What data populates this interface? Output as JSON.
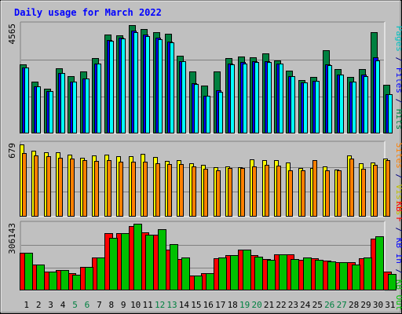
{
  "chart_data": {
    "type": "bar",
    "title": "Daily usage for March 2022",
    "categories": [
      "1",
      "2",
      "3",
      "4",
      "5",
      "6",
      "7",
      "8",
      "9",
      "10",
      "11",
      "12",
      "13",
      "14",
      "15",
      "16",
      "17",
      "18",
      "19",
      "20",
      "21",
      "22",
      "23",
      "24",
      "25",
      "26",
      "27",
      "28",
      "29",
      "30",
      "31"
    ],
    "weekend_days": [
      "5",
      "6",
      "12",
      "13",
      "19",
      "20",
      "26",
      "27"
    ],
    "panels": [
      {
        "id": "hits",
        "max_label": "4565",
        "ylim": [
          0,
          4565
        ],
        "series": [
          {
            "name": "Hits",
            "color": "#008040",
            "values": [
              2920,
              2170,
              1900,
              2740,
              2400,
              2610,
              3190,
              4160,
              4150,
              4565,
              4400,
              4260,
              4190,
              3260,
              2610,
              2030,
              2610,
              3160,
              3240,
              3200,
              3370,
              3060,
              2660,
              2250,
              2380,
              3500,
              2720,
              2370,
              2700,
              4260,
              2060
            ]
          },
          {
            "name": "Files",
            "color": "#0000ff",
            "values": [
              2770,
              1980,
              1770,
              2550,
              2170,
              2310,
              2950,
              3920,
              4040,
              4340,
              4160,
              4020,
              3860,
              3050,
              2110,
              1580,
              1820,
              2930,
              3000,
              3050,
              3050,
              2940,
              2400,
              2150,
              2230,
              2900,
              2470,
              2190,
              2490,
              3200,
              1650
            ]
          },
          {
            "name": "Pages",
            "color": "#00ffff",
            "values": [
              2770,
              1980,
              1770,
              2550,
              2170,
              2310,
              2950,
              3900,
              3990,
              4260,
              4100,
              3980,
              3830,
              3050,
              2070,
              1580,
              1760,
              2910,
              2940,
              3020,
              3010,
              2940,
              2400,
              2150,
              2230,
              2880,
              2470,
              2190,
              2420,
              3060,
              1650
            ]
          }
        ]
      },
      {
        "id": "visits",
        "max_label": "679",
        "ylim": [
          0,
          679
        ],
        "series": [
          {
            "name": "Visits",
            "color": "#ffff00",
            "values": [
              679,
              619,
              603,
              603,
              584,
              551,
              576,
              584,
              565,
              565,
              592,
              563,
              524,
              535,
              501,
              488,
              464,
              475,
              466,
              536,
              533,
              533,
              510,
              459,
              460,
              471,
              440,
              578,
              500,
              510,
              543
            ]
          },
          {
            "name": "Sites",
            "color": "#ff8000",
            "values": [
              595,
              574,
              571,
              555,
              543,
              528,
              524,
              534,
              516,
              518,
              513,
              505,
              493,
              491,
              470,
              447,
              437,
              460,
              460,
              475,
              485,
              479,
              435,
              433,
              534,
              438,
              432,
              544,
              452,
              484,
              530
            ]
          }
        ]
      },
      {
        "id": "kbytes",
        "max_label": "306143",
        "ylim": [
          0,
          306143
        ],
        "series": [
          {
            "name": "KB F",
            "color": "#ff0000",
            "values": [
              175000,
              120000,
              88000,
              93000,
              82000,
              110000,
              152000,
              265000,
              267000,
              300000,
              268000,
              260000,
              188000,
              147000,
              70000,
              82000,
              148000,
              165000,
              190000,
              165000,
              146000,
              168000,
              166000,
              141000,
              149000,
              140000,
              130000,
              130000,
              148000,
              240000,
              88000
            ]
          },
          {
            "name": "KB In",
            "color": "#0000ff",
            "values": [
              0,
              0,
              0,
              0,
              0,
              0,
              0,
              0,
              0,
              0,
              0,
              0,
              0,
              0,
              0,
              0,
              0,
              0,
              0,
              0,
              0,
              0,
              0,
              0,
              0,
              0,
              0,
              0,
              0,
              0,
              0
            ]
          },
          {
            "name": "KB Out",
            "color": "#00c000",
            "values": [
              175000,
              120000,
              88000,
              93000,
              72000,
              110000,
              152000,
              243000,
              267000,
              310000,
              260000,
              285000,
              216000,
              152000,
              70000,
              82000,
              154000,
              165000,
              190000,
              155000,
              142000,
              168000,
              145000,
              152000,
              141000,
              135000,
              130000,
              120000,
              152000,
              250000,
              78000
            ]
          }
        ]
      }
    ],
    "right_labels": [
      {
        "panel": "hits",
        "parts": [
          {
            "text": "Pages",
            "color": "#00c0c0"
          },
          {
            "text": " / ",
            "color": "#000080"
          },
          {
            "text": "Files",
            "color": "#0000ff"
          },
          {
            "text": " / ",
            "color": "#000080"
          },
          {
            "text": "Hits",
            "color": "#008040"
          }
        ]
      },
      {
        "panel": "visits",
        "parts": [
          {
            "text": "Sites",
            "color": "#ff8000"
          },
          {
            "text": " / ",
            "color": "#000080"
          },
          {
            "text": "Visits",
            "color": "#c0c000"
          }
        ]
      },
      {
        "panel": "kbytes",
        "parts": [
          {
            "text": "KB F",
            "color": "#ff0000"
          },
          {
            "text": " / ",
            "color": "#000080"
          },
          {
            "text": "KB In",
            "color": "#0000ff"
          },
          {
            "text": " / ",
            "color": "#000080"
          },
          {
            "text": "KB Out",
            "color": "#00c000"
          }
        ]
      }
    ],
    "colors": {
      "title": "#0000ff",
      "weekday_label": "#000000",
      "weekend_label": "#008040",
      "plot_background": "#c0c0c0",
      "frame_background": "#c0c0c0",
      "gridline": "#808080"
    }
  }
}
